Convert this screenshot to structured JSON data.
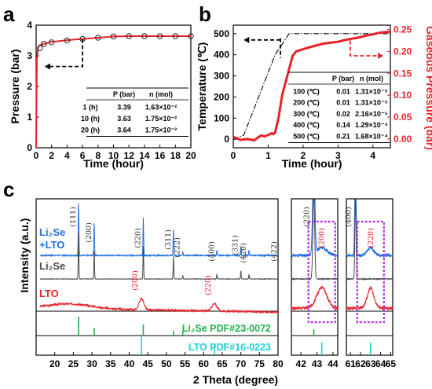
{
  "panels": {
    "a": {
      "letter": "a"
    },
    "b": {
      "letter": "b"
    },
    "c": {
      "letter": "c"
    }
  },
  "colors": {
    "red": "#e8212b",
    "blue": "#1f6fe0",
    "gray": "#4a4a4a",
    "li2se_ref": "#22b14c",
    "lto_ref": "#1ad1d6",
    "highlight": "#b232e6",
    "black": "#000000"
  },
  "chart_data": [
    {
      "id": "a",
      "type": "line",
      "xlabel": "Time (hour)",
      "ylabel": "Pressure (bar)",
      "xlim": [
        0,
        20
      ],
      "ylim": [
        0,
        4
      ],
      "xticks": [
        "0",
        "2",
        "4",
        "6",
        "8",
        "10",
        "12",
        "14",
        "16",
        "18",
        "20"
      ],
      "yticks": [
        "0",
        "1",
        "2",
        "3",
        "4"
      ],
      "series": [
        {
          "x": [
            0,
            0.05,
            0.1,
            0.2,
            0.3,
            0.5,
            0.8,
            1,
            1.5,
            2,
            3,
            4,
            5,
            6,
            8,
            10,
            12,
            14,
            16,
            18,
            20
          ],
          "y": [
            0,
            1.6,
            2.9,
            3.2,
            3.3,
            3.35,
            3.38,
            3.39,
            3.42,
            3.45,
            3.48,
            3.51,
            3.53,
            3.55,
            3.59,
            3.63,
            3.64,
            3.64,
            3.64,
            3.64,
            3.64
          ]
        }
      ],
      "markers": {
        "x": [
          0.5,
          1,
          2,
          4,
          6,
          8,
          10,
          12,
          14,
          16,
          18,
          20
        ],
        "y": [
          3.25,
          3.39,
          3.44,
          3.5,
          3.55,
          3.59,
          3.63,
          3.64,
          3.64,
          3.64,
          3.64,
          3.64
        ]
      },
      "table": {
        "headers": [
          "",
          "P (bar)",
          "n (mol)"
        ],
        "rows": [
          [
            "1 (h)",
            "3.39",
            "1.63×10⁻²"
          ],
          [
            "10 (h)",
            "3.63",
            "1.75×10⁻²"
          ],
          [
            "20 (h)",
            "3.64",
            "1.75×10⁻²"
          ]
        ]
      }
    },
    {
      "id": "b",
      "type": "line",
      "xlabel": "Time (hour)",
      "ylabel": "Temperature (℃)",
      "ylabel_right": "Gaseous Pressure (bar)",
      "xlim": [
        0,
        4.5
      ],
      "ylim": [
        0,
        500
      ],
      "ylim_right": [
        -0.02,
        0.26
      ],
      "xticks": [
        "0",
        "1",
        "2",
        "3",
        "4"
      ],
      "yticks": [
        "0",
        "100",
        "200",
        "300",
        "400",
        "500"
      ],
      "yticks_right": [
        "0.00",
        "0.05",
        "0.10",
        "0.15",
        "0.20",
        "0.25"
      ],
      "series": [
        {
          "axis": "left",
          "x": [
            0,
            0.3,
            1.2,
            1.6,
            4.5
          ],
          "y": [
            0,
            20,
            400,
            500,
            500
          ]
        },
        {
          "axis": "right",
          "x": [
            0,
            0.2,
            0.4,
            0.6,
            0.7,
            0.8,
            0.9,
            1.0,
            1.1,
            1.15,
            1.2,
            1.3,
            1.4,
            1.5,
            1.6,
            1.7,
            1.8,
            2.0,
            2.2,
            2.4,
            2.6,
            2.8,
            3.0,
            3.2,
            3.4,
            3.6,
            3.8,
            4.0,
            4.2,
            4.5
          ],
          "y": [
            0.005,
            -0.002,
            0.0,
            -0.003,
            0.003,
            0.008,
            0.006,
            0.009,
            0.013,
            0.011,
            0.015,
            0.05,
            0.1,
            0.13,
            0.16,
            0.19,
            0.2,
            0.205,
            0.21,
            0.214,
            0.218,
            0.22,
            0.222,
            0.226,
            0.229,
            0.232,
            0.236,
            0.239,
            0.243,
            0.245
          ]
        }
      ],
      "table": {
        "headers": [
          "",
          "P (bar)",
          "n (mol)"
        ],
        "rows": [
          [
            "100 (℃)",
            "0.01",
            "1.31×10⁻⁵"
          ],
          [
            "200 (℃)",
            "0.01",
            "1.31×10⁻⁵"
          ],
          [
            "300 (℃)",
            "0.02",
            "2.16×10⁻⁵"
          ],
          [
            "400 (℃)",
            "0.14",
            "1.29×10⁻⁴"
          ],
          [
            "500 (℃)",
            "0.21",
            "1.68×10⁻⁴"
          ]
        ]
      }
    },
    {
      "id": "c",
      "type": "line",
      "xlabel": "2 Theta (degree)",
      "ylabel": "Intensity (a.u.)",
      "xlim": [
        15,
        80
      ],
      "xticks": [
        "20",
        "25",
        "30",
        "35",
        "40",
        "45",
        "50",
        "55",
        "60",
        "65",
        "70",
        "75",
        "80"
      ],
      "zoom_xticks_1": [
        "42",
        "43",
        "44"
      ],
      "zoom_xticks_2": [
        "61",
        "62",
        "63",
        "64",
        "65"
      ],
      "series": [
        {
          "name": "Li2Se +LTO",
          "label_line1": "Li₂Se",
          "label_line2": "+LTO"
        },
        {
          "name": "Li2Se",
          "label_line1": "Li₂Se"
        },
        {
          "name": "LTO",
          "label_line1": "LTO"
        }
      ],
      "li2se_peaks": [
        {
          "x": 26.4,
          "h": 1.0,
          "label": "(111)"
        },
        {
          "x": 30.6,
          "h": 0.62,
          "label": "(200)"
        },
        {
          "x": 43.8,
          "h": 0.7,
          "label": "(220)"
        },
        {
          "x": 51.9,
          "h": 0.5,
          "label": "(311)"
        },
        {
          "x": 54.4,
          "h": 0.08,
          "label": "(222)"
        },
        {
          "x": 63.6,
          "h": 0.1,
          "label": "(400)"
        },
        {
          "x": 70.0,
          "h": 0.18,
          "label": "(331)"
        },
        {
          "x": 72.2,
          "h": 0.1,
          "label": "(420)"
        },
        {
          "x": 80.4,
          "h": 0.12,
          "label": "(422)"
        }
      ],
      "lto_peaks": [
        {
          "x": 43.3,
          "label": "(200)"
        },
        {
          "x": 62.9,
          "label": "(220)"
        }
      ],
      "reference_li2se": {
        "label": "Li₂Se  PDF#23-0072",
        "x": [
          26.4,
          30.6,
          43.8,
          51.9,
          54.4
        ]
      },
      "reference_lto": {
        "label": "LTO  PDF#16-0223",
        "x": [
          43.3,
          62.9
        ]
      },
      "zoom1_labels": [
        "(220)",
        "(200)"
      ],
      "zoom2_labels": [
        "(400)",
        "(220)"
      ]
    }
  ]
}
